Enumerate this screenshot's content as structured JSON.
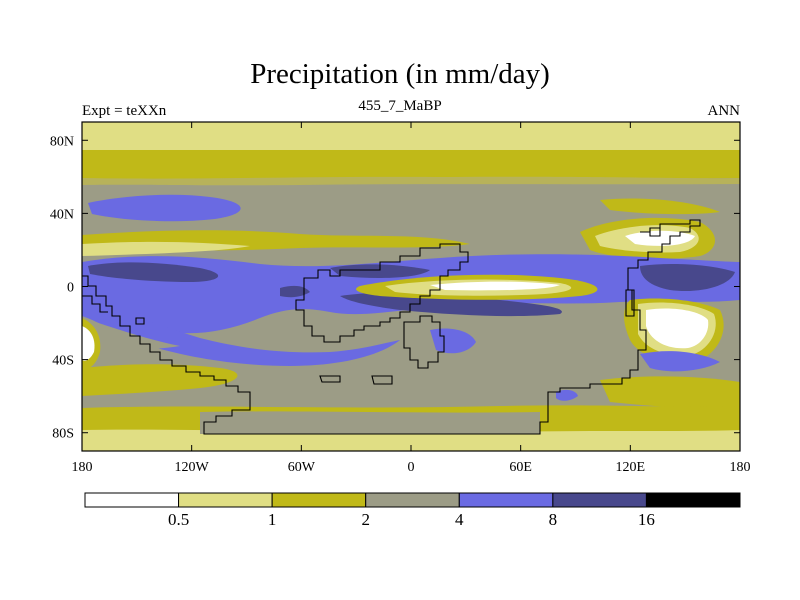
{
  "title": "Precipitation (in mm/day)",
  "left_label": "Expt = teXXn",
  "center_label": "455_7_MaBP",
  "right_label": "ANN",
  "chart_data": {
    "type": "contour-map",
    "variable": "Precipitation",
    "units": "mm/day",
    "experiment": "teXXn",
    "period": "455_7_MaBP",
    "season": "ANN",
    "x_axis": {
      "range": [
        -180,
        180
      ],
      "ticks": [
        -180,
        -120,
        -60,
        0,
        60,
        120,
        180
      ],
      "tick_labels": [
        "180",
        "120W",
        "60W",
        "0",
        "60E",
        "120E",
        "180"
      ]
    },
    "y_axis": {
      "range": [
        -90,
        90
      ],
      "ticks": [
        80,
        40,
        0,
        -40,
        -80
      ],
      "tick_labels": [
        "80N",
        "40N",
        "0",
        "40S",
        "80S"
      ]
    },
    "contour_levels": [
      0.5,
      1,
      2,
      4,
      8,
      16
    ],
    "colorbar": {
      "colors": [
        "#ffffff",
        "#e0de84",
        "#c0b918",
        "#9c9c86",
        "#6a6ae2",
        "#48488c",
        "#000000"
      ],
      "labels": [
        "0.5",
        "1",
        "2",
        "4",
        "8",
        "16"
      ]
    }
  }
}
